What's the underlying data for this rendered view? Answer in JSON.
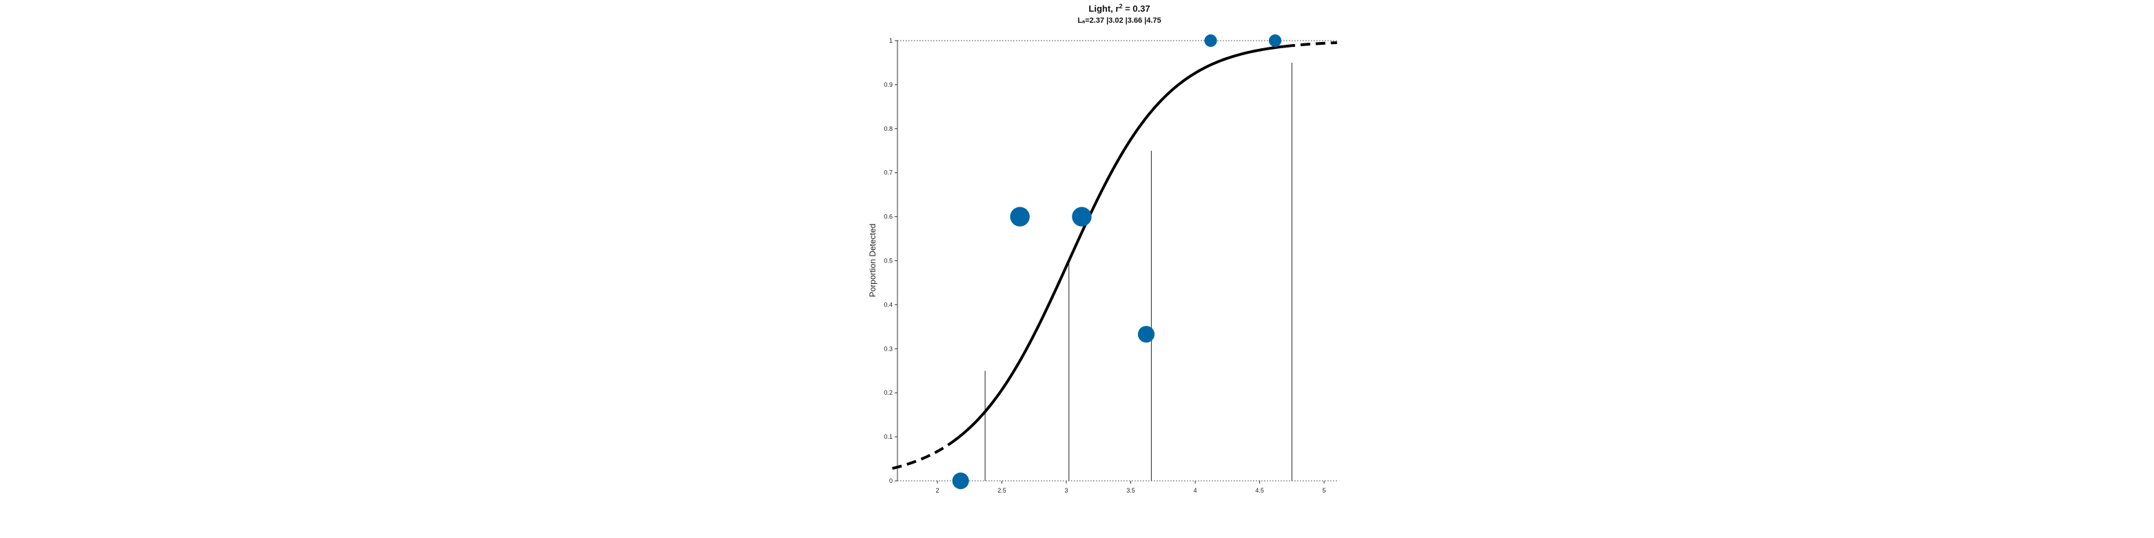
{
  "chart_data": {
    "type": "scatter",
    "title_main": "Light, r",
    "title_sup": "2",
    "title_rest": " = 0.37",
    "subtitle": "Lₐ=2.37 |3.02 |3.66 |4.75",
    "xlabel": "",
    "ylabel": "Porportion Detected",
    "xlim": [
      1.65,
      5.1
    ],
    "ylim": [
      0,
      1
    ],
    "x_ticks": [
      "2",
      "2.5",
      "3",
      "3.5",
      "4",
      "4.5",
      "5"
    ],
    "y_ticks": [
      "0",
      "0.1",
      "0.2",
      "0.3",
      "0.4",
      "0.5",
      "0.6",
      "0.7",
      "0.8",
      "0.9",
      "1"
    ],
    "series": [
      {
        "points": [
          {
            "x": 2.18,
            "y": 0.0,
            "size": 3
          },
          {
            "x": 2.64,
            "y": 0.6,
            "size": 5
          },
          {
            "x": 3.12,
            "y": 0.6,
            "size": 5
          },
          {
            "x": 3.62,
            "y": 0.333,
            "size": 3
          },
          {
            "x": 4.12,
            "y": 1.0,
            "size": 1
          },
          {
            "x": 4.62,
            "y": 1.0,
            "size": 1
          }
        ]
      }
    ],
    "fit_curve": {
      "midpoint": 3.02,
      "scale": 0.387,
      "solid_range": [
        2.1,
        4.7
      ]
    },
    "threshold_lines": [
      {
        "x": 2.37,
        "y": 0.25
      },
      {
        "x": 3.02,
        "y": 0.5
      },
      {
        "x": 3.66,
        "y": 0.75
      },
      {
        "x": 4.75,
        "y": 0.95
      }
    ],
    "reference_lines": [
      0,
      1
    ],
    "grid": false,
    "colors": {
      "points": "#0066a6",
      "curve": "#000000",
      "threshold": "#444444",
      "axis": "#333333"
    }
  }
}
